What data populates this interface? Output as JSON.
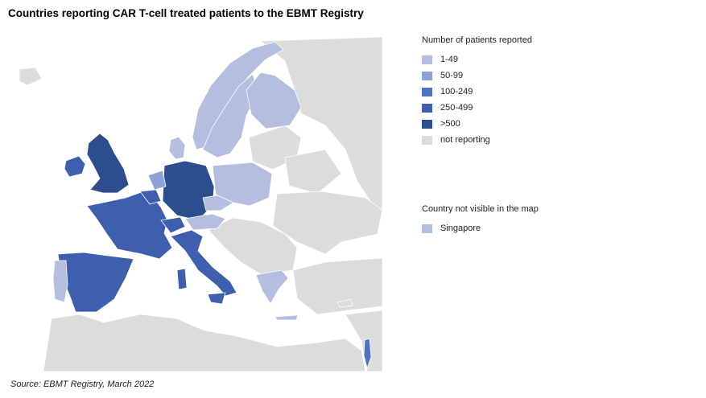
{
  "title": "Countries reporting CAR T-cell treated patients to the EBMT Registry",
  "legend": {
    "title": "Number of patients reported",
    "items": [
      {
        "label": "1-49",
        "color": "#b4bfe0"
      },
      {
        "label": "50-99",
        "color": "#8fa2d6"
      },
      {
        "label": "100-249",
        "color": "#4e72c6"
      },
      {
        "label": "250-499",
        "color": "#3d5fae"
      },
      {
        "label": ">500",
        "color": "#2c4d8e"
      },
      {
        "label": "not reporting",
        "color": "#dcdcdc"
      }
    ]
  },
  "not_visible": {
    "title": "Country not visible in the map",
    "items": [
      {
        "label": "Singapore",
        "color": "#b4bfe0"
      }
    ]
  },
  "source": "Source:  EBMT Registry, March 2022",
  "countries": {
    "united-kingdom": ">500",
    "ireland": "250-499",
    "france": "250-499",
    "spain": "250-499",
    "portugal": "1-49",
    "germany": ">500",
    "netherlands": "50-99",
    "belgium": "250-499",
    "switzerland": "250-499",
    "austria": "1-49",
    "czechia": "1-49",
    "poland": "1-49",
    "italy": "250-499",
    "greece": "1-49",
    "norway": "1-49",
    "sweden": "1-49",
    "finland": "1-49",
    "denmark": "1-49",
    "israel": "100-249"
  }
}
